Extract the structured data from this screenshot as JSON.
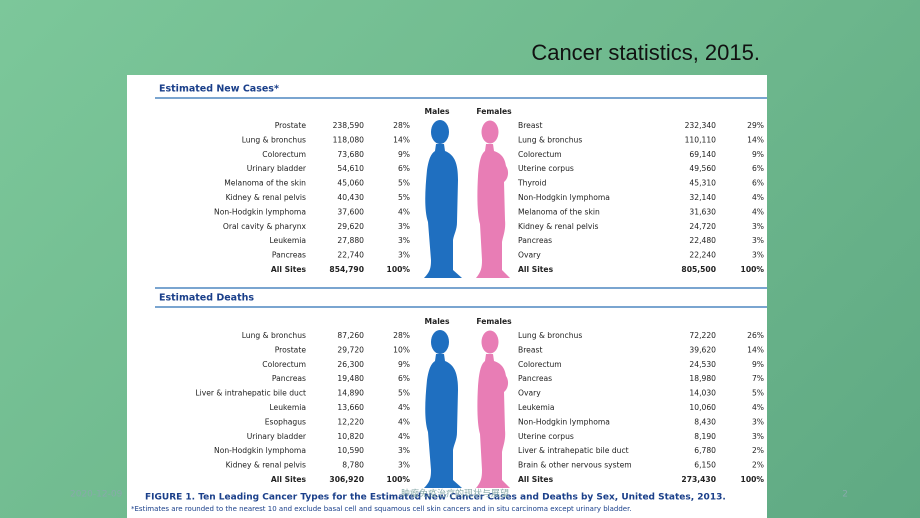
{
  "slide_title": "Cancer statistics, 2015.",
  "sections": [
    {
      "heading": "Estimated New Cases*",
      "males_label": "Males",
      "females_label": "Females",
      "males": [
        [
          "Prostate",
          "238,590",
          "28%"
        ],
        [
          "Lung & bronchus",
          "118,080",
          "14%"
        ],
        [
          "Colorectum",
          "73,680",
          "9%"
        ],
        [
          "Urinary bladder",
          "54,610",
          "6%"
        ],
        [
          "Melanoma of the skin",
          "45,060",
          "5%"
        ],
        [
          "Kidney & renal pelvis",
          "40,430",
          "5%"
        ],
        [
          "Non-Hodgkin lymphoma",
          "37,600",
          "4%"
        ],
        [
          "Oral cavity & pharynx",
          "29,620",
          "3%"
        ],
        [
          "Leukemia",
          "27,880",
          "3%"
        ],
        [
          "Pancreas",
          "22,740",
          "3%"
        ],
        [
          "All Sites",
          "854,790",
          "100%"
        ]
      ],
      "females": [
        [
          "Breast",
          "232,340",
          "29%"
        ],
        [
          "Lung & bronchus",
          "110,110",
          "14%"
        ],
        [
          "Colorectum",
          "69,140",
          "9%"
        ],
        [
          "Uterine corpus",
          "49,560",
          "6%"
        ],
        [
          "Thyroid",
          "45,310",
          "6%"
        ],
        [
          "Non-Hodgkin lymphoma",
          "32,140",
          "4%"
        ],
        [
          "Melanoma of the skin",
          "31,630",
          "4%"
        ],
        [
          "Kidney & renal pelvis",
          "24,720",
          "3%"
        ],
        [
          "Pancreas",
          "22,480",
          "3%"
        ],
        [
          "Ovary",
          "22,240",
          "3%"
        ],
        [
          "All Sites",
          "805,500",
          "100%"
        ]
      ]
    },
    {
      "heading": "Estimated Deaths",
      "males_label": "Males",
      "females_label": "Females",
      "males": [
        [
          "Lung & bronchus",
          "87,260",
          "28%"
        ],
        [
          "Prostate",
          "29,720",
          "10%"
        ],
        [
          "Colorectum",
          "26,300",
          "9%"
        ],
        [
          "Pancreas",
          "19,480",
          "6%"
        ],
        [
          "Liver & intrahepatic bile duct",
          "14,890",
          "5%"
        ],
        [
          "Leukemia",
          "13,660",
          "4%"
        ],
        [
          "Esophagus",
          "12,220",
          "4%"
        ],
        [
          "Urinary bladder",
          "10,820",
          "4%"
        ],
        [
          "Non-Hodgkin lymphoma",
          "10,590",
          "3%"
        ],
        [
          "Kidney & renal pelvis",
          "8,780",
          "3%"
        ],
        [
          "All Sites",
          "306,920",
          "100%"
        ]
      ],
      "females": [
        [
          "Lung & bronchus",
          "72,220",
          "26%"
        ],
        [
          "Breast",
          "39,620",
          "14%"
        ],
        [
          "Colorectum",
          "24,530",
          "9%"
        ],
        [
          "Pancreas",
          "18,980",
          "7%"
        ],
        [
          "Ovary",
          "14,030",
          "5%"
        ],
        [
          "Leukemia",
          "10,060",
          "4%"
        ],
        [
          "Non-Hodgkin lymphoma",
          "8,430",
          "3%"
        ],
        [
          "Uterine corpus",
          "8,190",
          "3%"
        ],
        [
          "Liver & intrahepatic bile duct",
          "6,780",
          "2%"
        ],
        [
          "Brain & other nervous system",
          "6,150",
          "2%"
        ],
        [
          "All Sites",
          "273,430",
          "100%"
        ]
      ]
    }
  ],
  "caption": "FIGURE 1. Ten Leading Cancer Types for the Estimated New Cancer Cases and Deaths by Sex, United States, 2013.",
  "caption_note": "*Estimates are rounded to the nearest 10 and exclude basal cell and squamous cell skin cancers and in situ carcinoma except urinary bladder.",
  "footer": {
    "date": "2020-12-09",
    "center": "肿瘤免疫治疗的现状与展望",
    "page": "2"
  }
}
